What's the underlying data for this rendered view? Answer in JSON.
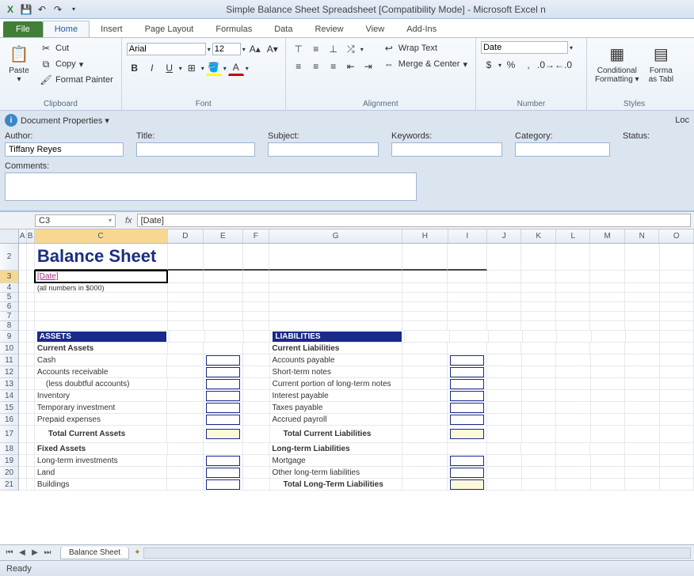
{
  "title": "Simple Balance Sheet Spreadsheet  [Compatibility Mode]  -  Microsoft Excel n",
  "qat": {
    "save": "💾",
    "undo": "↶",
    "redo": "↷",
    "down": "▾"
  },
  "tabs": [
    "File",
    "Home",
    "Insert",
    "Page Layout",
    "Formulas",
    "Data",
    "Review",
    "View",
    "Add-Ins"
  ],
  "active_tab": 1,
  "clipboard": {
    "paste": "Paste",
    "cut": "Cut",
    "copy": "Copy",
    "format_painter": "Format Painter",
    "label": "Clipboard"
  },
  "font": {
    "name": "Arial",
    "size": "12",
    "label": "Font",
    "bold": "B",
    "italic": "I",
    "underline": "U"
  },
  "alignment": {
    "wrap": "Wrap Text",
    "merge": "Merge & Center",
    "label": "Alignment"
  },
  "number": {
    "format": "Date",
    "label": "Number"
  },
  "styles": {
    "cond": "Conditional",
    "cond2": "Formatting",
    "fmt": "Forma",
    "fmt2": "as Tabl",
    "label": "Styles"
  },
  "docprops": {
    "icon": "i",
    "title": "Document Properties",
    "loc": "Loc",
    "fields": {
      "author_lbl": "Author:",
      "author_val": "Tiffany Reyes",
      "title_lbl": "Title:",
      "title_val": "",
      "subject_lbl": "Subject:",
      "subject_val": "",
      "keywords_lbl": "Keywords:",
      "keywords_val": "",
      "category_lbl": "Category:",
      "category_val": "",
      "status_lbl": "Status:",
      "status_val": "",
      "comments_lbl": "Comments:",
      "comments_val": ""
    }
  },
  "namebox": "C3",
  "fx": "fx",
  "formula": "[Date]",
  "columns": [
    "A",
    "B",
    "C",
    "D",
    "E",
    "F",
    "G",
    "H",
    "I",
    "J",
    "K",
    "L",
    "M",
    "N",
    "O"
  ],
  "rows": [
    "2",
    "3",
    "4",
    "5",
    "6",
    "7",
    "8",
    "9",
    "10",
    "11",
    "12",
    "13",
    "14",
    "15",
    "16",
    "17",
    "18",
    "19",
    "20",
    "21"
  ],
  "row_heights": {
    "2": 34,
    "3": 16,
    "4": 12,
    "5": 12,
    "6": 12,
    "7": 12,
    "8": 12,
    "9": 15,
    "10": 15,
    "11": 15,
    "12": 15,
    "13": 15,
    "14": 15,
    "15": 15,
    "16": 15,
    "17": 22,
    "18": 15,
    "19": 15,
    "20": 15,
    "21": 15
  },
  "sheet": {
    "title": "Balance Sheet",
    "date": "[Date]",
    "note": "(all numbers in $000)",
    "assets_hdr": "ASSETS",
    "liab_hdr": "LIABILITIES",
    "current_assets": "Current Assets",
    "cash": "Cash",
    "ar": "Accounts receivable",
    "less_doubt": "(less doubtful accounts)",
    "inventory": "Inventory",
    "temp_inv": "Temporary investment",
    "prepaid": "Prepaid expenses",
    "tot_cur_assets": "Total Current Assets",
    "fixed_assets": "Fixed Assets",
    "lt_inv": "Long-term investments",
    "land": "Land",
    "buildings": "Buildings",
    "current_liab": "Current Liabilities",
    "ap": "Accounts payable",
    "st_notes": "Short-term notes",
    "cur_lt_notes": "Current portion of long-term notes",
    "int_pay": "Interest payable",
    "tax_pay": "Taxes payable",
    "accrued": "Accrued payroll",
    "tot_cur_liab": "Total Current Liabilities",
    "lt_liab": "Long-term Liabilities",
    "mortgage": "Mortgage",
    "other_lt": "Other long-term liabilities",
    "tot_lt_liab": "Total Long-Term Liabilities"
  },
  "sheettab": "Balance Sheet",
  "status": "Ready",
  "colors": {
    "title": "#1b2f80",
    "band": "#1a2a8a",
    "date": "#b02590",
    "total_bg": "#fdf8d8"
  }
}
